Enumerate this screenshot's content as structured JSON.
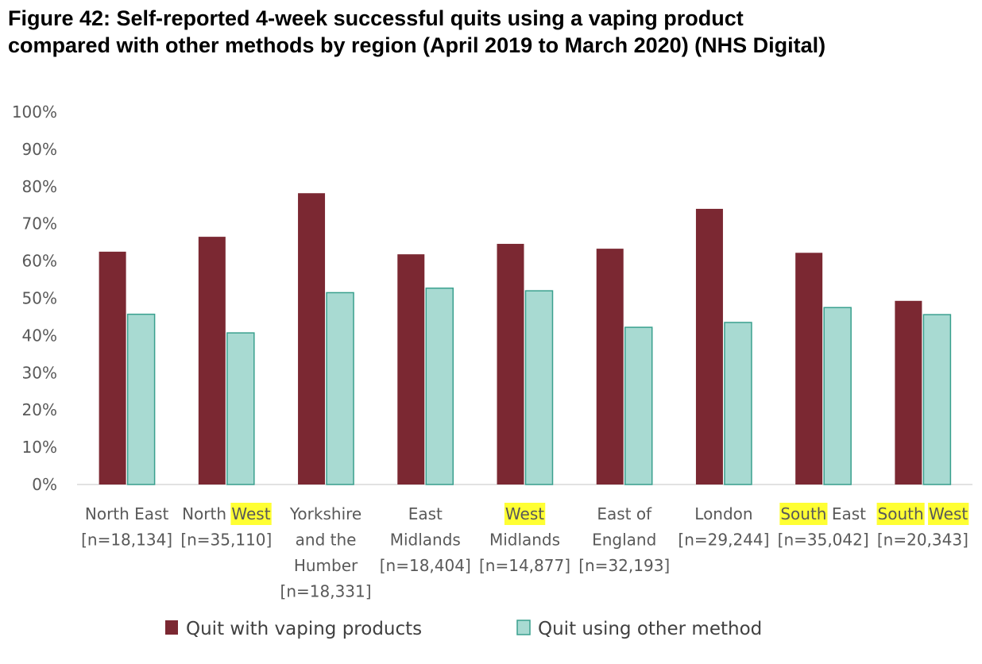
{
  "title_lines": [
    "Figure 42: Self-reported 4-week successful quits using a vaping product",
    "compared with other methods by region (April 2019 to March 2020) (NHS Digital)"
  ],
  "colors": {
    "vaping_fill": "#7b2832",
    "other_fill": "#a8dad2",
    "other_stroke": "#3aa08e",
    "axis": "#d9d9d9",
    "highlight": "#ffff33"
  },
  "chart_data": {
    "type": "bar",
    "ylim": [
      0,
      100
    ],
    "yticks": [
      0,
      10,
      20,
      30,
      40,
      50,
      60,
      70,
      80,
      90,
      100
    ],
    "ytick_labels": [
      "0%",
      "10%",
      "20%",
      "30%",
      "40%",
      "50%",
      "60%",
      "70%",
      "80%",
      "90%",
      "100%"
    ],
    "grid": false,
    "legend_position": "bottom",
    "categories": [
      {
        "lines": [
          [
            "North East"
          ],
          [
            "[n=18,134]"
          ]
        ]
      },
      {
        "lines": [
          [
            "North ",
            {
              "t": "West",
              "hl": true
            }
          ],
          [
            "[n=35,110]"
          ]
        ]
      },
      {
        "lines": [
          [
            "Yorkshire"
          ],
          [
            "and the"
          ],
          [
            "Humber"
          ],
          [
            "[n=18,331]"
          ]
        ]
      },
      {
        "lines": [
          [
            "East"
          ],
          [
            "Midlands"
          ],
          [
            "[n=18,404]"
          ]
        ]
      },
      {
        "lines": [
          [
            {
              "t": "West",
              "hl": true
            }
          ],
          [
            "Midlands"
          ],
          [
            "[n=14,877]"
          ]
        ]
      },
      {
        "lines": [
          [
            "East of"
          ],
          [
            "England"
          ],
          [
            "[n=32,193]"
          ]
        ]
      },
      {
        "lines": [
          [
            "London"
          ],
          [
            "[n=29,244]"
          ]
        ]
      },
      {
        "lines": [
          [
            {
              "t": "South",
              "hl": true
            },
            " East"
          ],
          [
            "[n=35,042]"
          ]
        ]
      },
      {
        "lines": [
          [
            {
              "t": "South",
              "hl": true
            },
            " ",
            {
              "t": "West",
              "hl": true
            }
          ],
          [
            "[n=20,343]"
          ]
        ]
      }
    ],
    "series": [
      {
        "name": "Quit with vaping products",
        "values": [
          62.5,
          66.5,
          78.2,
          61.8,
          64.6,
          63.3,
          74.0,
          62.2,
          49.3
        ]
      },
      {
        "name": "Quit using other method",
        "values": [
          45.7,
          40.7,
          51.5,
          52.7,
          52.0,
          42.2,
          43.5,
          47.5,
          45.6
        ]
      }
    ]
  }
}
